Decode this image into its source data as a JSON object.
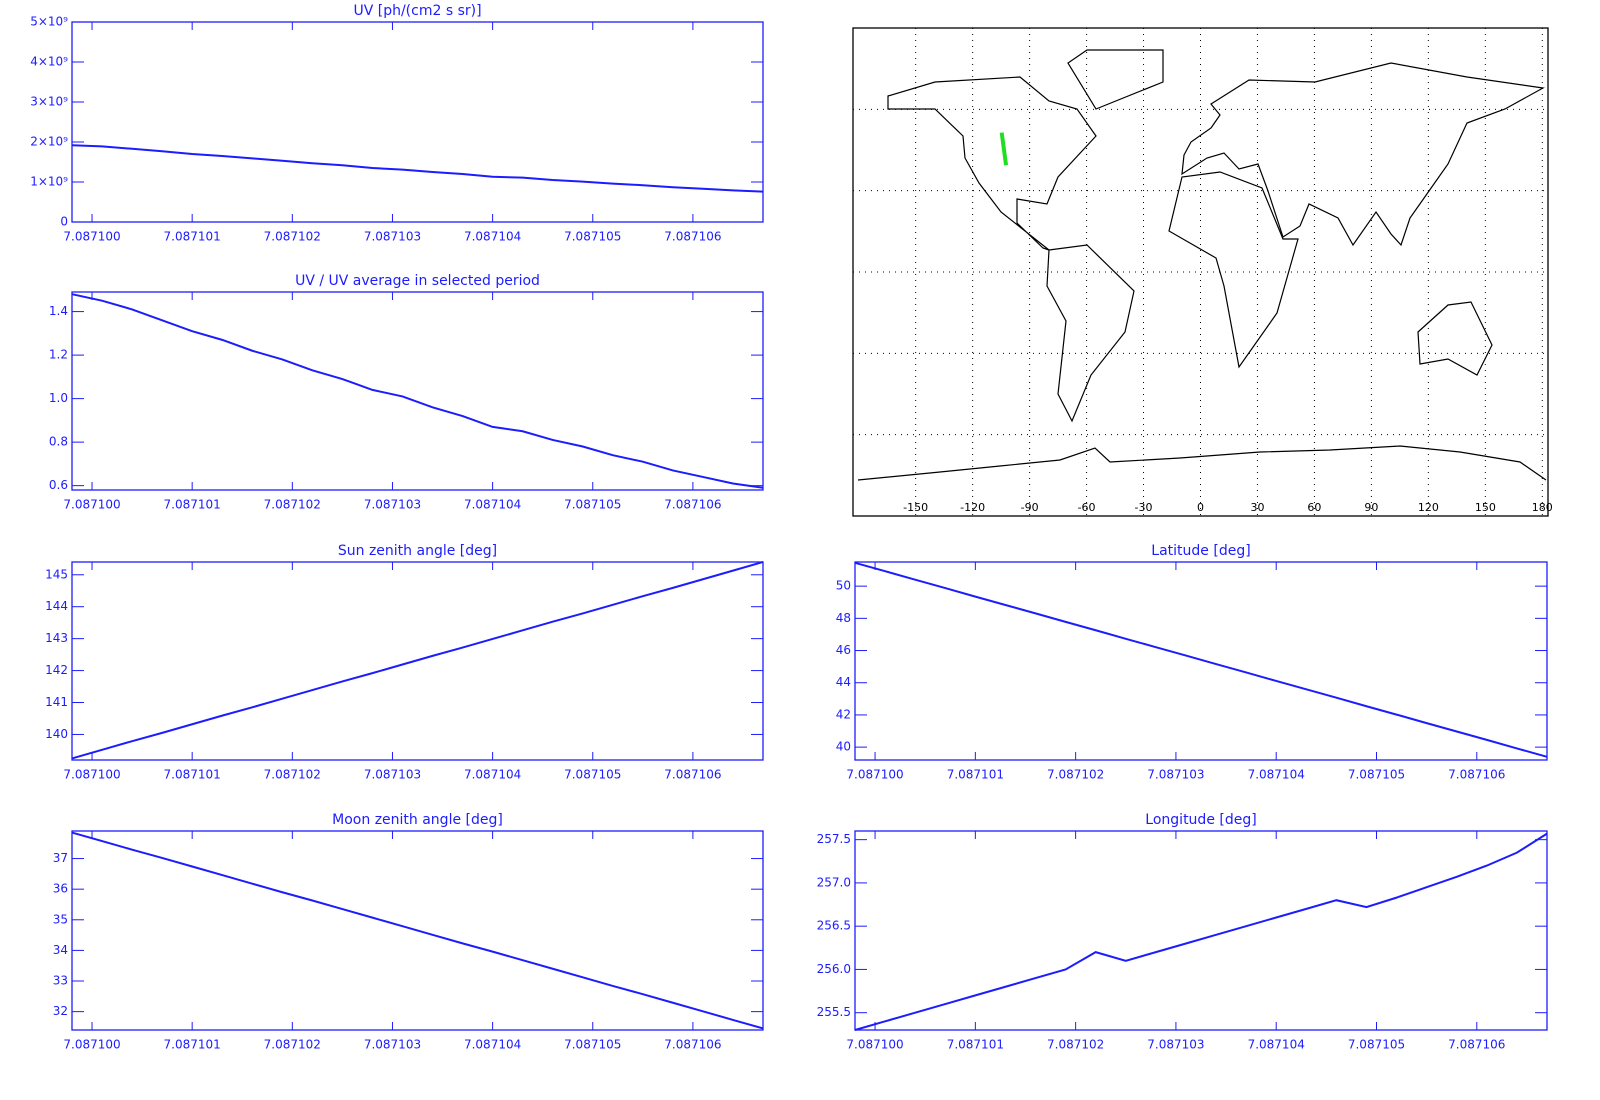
{
  "chart_data": [
    {
      "type": "line",
      "title": "UV [ph/(cm2 s sr)]",
      "color": "#1c1cff",
      "x": [
        7.0870998,
        7.0871001,
        7.0871004,
        7.0871007,
        7.087101,
        7.0871013,
        7.0871016,
        7.0871019,
        7.0871022,
        7.0871025,
        7.0871028,
        7.0871031,
        7.0871034,
        7.0871037,
        7.087104,
        7.0871043,
        7.0871046,
        7.0871049,
        7.0871052,
        7.0871055,
        7.0871058,
        7.0871061,
        7.0871064,
        7.0871067
      ],
      "values": [
        1920000000,
        1890000000,
        1830000000,
        1770000000,
        1700000000,
        1650000000,
        1590000000,
        1530000000,
        1470000000,
        1420000000,
        1350000000,
        1310000000,
        1250000000,
        1200000000,
        1130000000,
        1110000000,
        1050000000,
        1010000000,
        960000000,
        920000000,
        870000000,
        830000000,
        790000000,
        760000000
      ],
      "xlim": [
        7.0870998,
        7.0871067
      ],
      "ylim": [
        0,
        5000000000
      ],
      "xticks": [
        {
          "value": 7.0871,
          "label": "7.087100"
        },
        {
          "value": 7.087101,
          "label": "7.087101"
        },
        {
          "value": 7.087102,
          "label": "7.087102"
        },
        {
          "value": 7.087103,
          "label": "7.087103"
        },
        {
          "value": 7.087104,
          "label": "7.087104"
        },
        {
          "value": 7.087105,
          "label": "7.087105"
        },
        {
          "value": 7.087106,
          "label": "7.087106"
        }
      ],
      "yticks": [
        0,
        {
          "value": 1000000000,
          "label": "1×10⁹"
        },
        {
          "value": 2000000000,
          "label": "2×10⁹"
        },
        {
          "value": 3000000000,
          "label": "3×10⁹"
        },
        {
          "value": 4000000000,
          "label": "4×10⁹"
        },
        {
          "value": 5000000000,
          "label": "5×10⁹"
        }
      ]
    },
    {
      "type": "line",
      "title": "UV / UV average in selected period",
      "color": "#1c1cff",
      "x": [
        7.0870998,
        7.0871001,
        7.0871004,
        7.0871007,
        7.087101,
        7.0871013,
        7.0871016,
        7.0871019,
        7.0871022,
        7.0871025,
        7.0871028,
        7.0871031,
        7.0871034,
        7.0871037,
        7.087104,
        7.0871043,
        7.0871046,
        7.0871049,
        7.0871052,
        7.0871055,
        7.0871058,
        7.0871061,
        7.0871064,
        7.0871067
      ],
      "values": [
        1.48,
        1.45,
        1.41,
        1.36,
        1.31,
        1.27,
        1.22,
        1.18,
        1.13,
        1.09,
        1.04,
        1.01,
        0.96,
        0.92,
        0.87,
        0.85,
        0.81,
        0.78,
        0.74,
        0.71,
        0.67,
        0.64,
        0.61,
        0.59
      ],
      "xlim": [
        7.0870998,
        7.0871067
      ],
      "ylim": [
        0.58,
        1.49
      ],
      "xticks": [
        {
          "value": 7.0871,
          "label": "7.087100"
        },
        {
          "value": 7.087101,
          "label": "7.087101"
        },
        {
          "value": 7.087102,
          "label": "7.087102"
        },
        {
          "value": 7.087103,
          "label": "7.087103"
        },
        {
          "value": 7.087104,
          "label": "7.087104"
        },
        {
          "value": 7.087105,
          "label": "7.087105"
        },
        {
          "value": 7.087106,
          "label": "7.087106"
        }
      ],
      "yticks": [
        0.6,
        0.8,
        {
          "value": 1,
          "label": "1.0"
        },
        1.2,
        1.4
      ]
    },
    {
      "type": "map",
      "color": "#000000",
      "grid": true,
      "xlim": [
        -183,
        183
      ],
      "ylim": [
        -90,
        90
      ],
      "xticks": [
        -150,
        -120,
        -90,
        -60,
        -30,
        0,
        30,
        60,
        90,
        120,
        150,
        180
      ],
      "ygrid": [
        -60,
        -30,
        0,
        30,
        60
      ],
      "series": [
        {
          "color": "#22dd22",
          "x": [
            -104.7,
            -102.4
          ],
          "y": [
            51.4,
            39.4
          ]
        }
      ]
    },
    {
      "type": "line",
      "title": "Sun zenith angle [deg]",
      "color": "#1c1cff",
      "x": [
        7.0870998,
        7.0871001,
        7.0871004,
        7.0871007,
        7.087101,
        7.0871013,
        7.0871016,
        7.0871019,
        7.0871022,
        7.0871025,
        7.0871028,
        7.0871031,
        7.0871034,
        7.0871037,
        7.087104,
        7.0871043,
        7.0871046,
        7.0871049,
        7.0871052,
        7.0871055,
        7.0871058,
        7.0871061,
        7.0871064,
        7.0871067
      ],
      "values": [
        139.25,
        139.52,
        139.79,
        140.05,
        140.32,
        140.59,
        140.85,
        141.12,
        141.39,
        141.66,
        141.92,
        142.19,
        142.46,
        142.72,
        142.99,
        143.26,
        143.53,
        143.79,
        144.06,
        144.33,
        144.59,
        144.86,
        145.13,
        145.4
      ],
      "xlim": [
        7.0870998,
        7.0871067
      ],
      "ylim": [
        139.2,
        145.4
      ],
      "xticks": [
        {
          "value": 7.0871,
          "label": "7.087100"
        },
        {
          "value": 7.087101,
          "label": "7.087101"
        },
        {
          "value": 7.087102,
          "label": "7.087102"
        },
        {
          "value": 7.087103,
          "label": "7.087103"
        },
        {
          "value": 7.087104,
          "label": "7.087104"
        },
        {
          "value": 7.087105,
          "label": "7.087105"
        },
        {
          "value": 7.087106,
          "label": "7.087106"
        }
      ],
      "yticks": [
        140,
        141,
        142,
        143,
        144,
        145
      ]
    },
    {
      "type": "line",
      "title": "Latitude [deg]",
      "color": "#1c1cff",
      "x": [
        7.0870998,
        7.0871001,
        7.0871004,
        7.0871007,
        7.087101,
        7.0871013,
        7.0871016,
        7.0871019,
        7.0871022,
        7.0871025,
        7.0871028,
        7.0871031,
        7.0871034,
        7.0871037,
        7.087104,
        7.0871043,
        7.0871046,
        7.0871049,
        7.0871052,
        7.0871055,
        7.0871058,
        7.0871061,
        7.0871064,
        7.0871067
      ],
      "values": [
        51.45,
        50.93,
        50.4,
        49.88,
        49.35,
        48.83,
        48.31,
        47.78,
        47.26,
        46.73,
        46.21,
        45.69,
        45.16,
        44.64,
        44.11,
        43.59,
        43.07,
        42.54,
        42.02,
        41.49,
        40.97,
        40.45,
        39.92,
        39.4
      ],
      "xlim": [
        7.0870998,
        7.0871067
      ],
      "ylim": [
        39.2,
        51.5
      ],
      "xticks": [
        {
          "value": 7.0871,
          "label": "7.087100"
        },
        {
          "value": 7.087101,
          "label": "7.087101"
        },
        {
          "value": 7.087102,
          "label": "7.087102"
        },
        {
          "value": 7.087103,
          "label": "7.087103"
        },
        {
          "value": 7.087104,
          "label": "7.087104"
        },
        {
          "value": 7.087105,
          "label": "7.087105"
        },
        {
          "value": 7.087106,
          "label": "7.087106"
        }
      ],
      "yticks": [
        40,
        42,
        44,
        46,
        48,
        50
      ]
    },
    {
      "type": "line",
      "title": "Moon zenith angle [deg]",
      "color": "#1c1cff",
      "x": [
        7.0870998,
        7.0871001,
        7.0871004,
        7.0871007,
        7.087101,
        7.0871013,
        7.0871016,
        7.0871019,
        7.0871022,
        7.0871025,
        7.0871028,
        7.0871031,
        7.0871034,
        7.0871037,
        7.087104,
        7.0871043,
        7.0871046,
        7.0871049,
        7.0871052,
        7.0871055,
        7.0871058,
        7.0871061,
        7.0871064,
        7.0871067
      ],
      "values": [
        37.85,
        37.57,
        37.29,
        37.02,
        36.74,
        36.46,
        36.18,
        35.9,
        35.63,
        35.35,
        35.07,
        34.79,
        34.51,
        34.23,
        33.96,
        33.68,
        33.4,
        33.12,
        32.84,
        32.57,
        32.29,
        32.01,
        31.73,
        31.45
      ],
      "xlim": [
        7.0870998,
        7.0871067
      ],
      "ylim": [
        31.4,
        37.9
      ],
      "xticks": [
        {
          "value": 7.0871,
          "label": "7.087100"
        },
        {
          "value": 7.087101,
          "label": "7.087101"
        },
        {
          "value": 7.087102,
          "label": "7.087102"
        },
        {
          "value": 7.087103,
          "label": "7.087103"
        },
        {
          "value": 7.087104,
          "label": "7.087104"
        },
        {
          "value": 7.087105,
          "label": "7.087105"
        },
        {
          "value": 7.087106,
          "label": "7.087106"
        }
      ],
      "yticks": [
        32,
        33,
        34,
        35,
        36,
        37
      ]
    },
    {
      "type": "line",
      "title": "Longitude [deg]",
      "color": "#1c1cff",
      "x": [
        7.0870998,
        7.0871001,
        7.0871004,
        7.0871007,
        7.087101,
        7.0871013,
        7.0871016,
        7.0871019,
        7.0871022,
        7.0871025,
        7.0871028,
        7.0871031,
        7.0871034,
        7.0871037,
        7.087104,
        7.0871043,
        7.0871046,
        7.0871049,
        7.0871052,
        7.0871055,
        7.0871058,
        7.0871061,
        7.0871064,
        7.0871067
      ],
      "values": [
        255.3,
        255.4,
        255.5,
        255.6,
        255.7,
        255.8,
        255.9,
        256.0,
        256.2,
        256.1,
        256.2,
        256.3,
        256.4,
        256.5,
        256.6,
        256.7,
        256.8,
        256.72,
        256.83,
        256.95,
        257.07,
        257.2,
        257.35,
        257.57
      ],
      "xlim": [
        7.0870998,
        7.0871067
      ],
      "ylim": [
        255.3,
        257.6
      ],
      "xticks": [
        {
          "value": 7.0871,
          "label": "7.087100"
        },
        {
          "value": 7.087101,
          "label": "7.087101"
        },
        {
          "value": 7.087102,
          "label": "7.087102"
        },
        {
          "value": 7.087103,
          "label": "7.087103"
        },
        {
          "value": 7.087104,
          "label": "7.087104"
        },
        {
          "value": 7.087105,
          "label": "7.087105"
        },
        {
          "value": 7.087106,
          "label": "7.087106"
        }
      ],
      "yticks": [
        255.5,
        {
          "value": 256,
          "label": "256.0"
        },
        256.5,
        {
          "value": 257,
          "label": "257.0"
        },
        257.5
      ]
    }
  ]
}
